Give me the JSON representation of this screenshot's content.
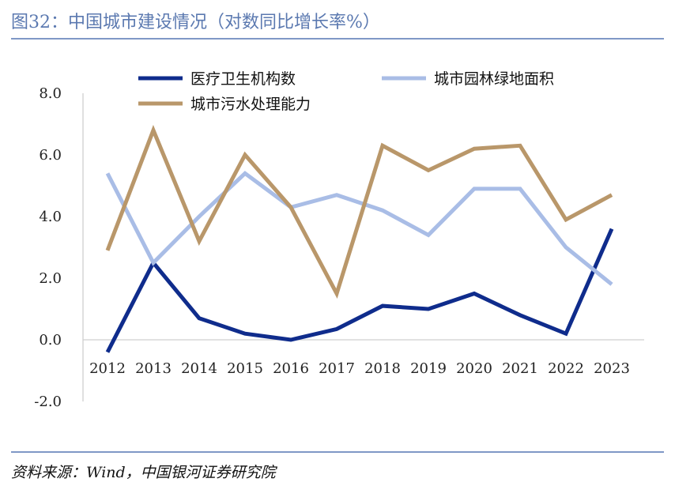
{
  "header": {
    "title": "图32：中国城市建设情况（对数同比增长率%）"
  },
  "footer": {
    "source": "资料来源：Wind，中国银河证券研究院"
  },
  "colors": {
    "accent": "#5b79b0",
    "rule": "#7f98c6"
  },
  "chart_data": {
    "type": "line",
    "title": "",
    "xlabel": "",
    "ylabel": "",
    "x": [
      "2012",
      "2013",
      "2014",
      "2015",
      "2016",
      "2017",
      "2018",
      "2019",
      "2020",
      "2021",
      "2022",
      "2023"
    ],
    "ylim": [
      -2.0,
      8.0
    ],
    "yticks": [
      "-2.0",
      "0.0",
      "2.0",
      "4.0",
      "6.0",
      "8.0"
    ],
    "grid": false,
    "legend_position": "top",
    "series": [
      {
        "name": "医疗卫生机构数",
        "color": "#0f2c8c",
        "values": [
          -0.4,
          2.5,
          0.7,
          0.2,
          0.0,
          0.35,
          1.1,
          1.0,
          1.5,
          0.8,
          0.2,
          3.6
        ]
      },
      {
        "name": "城市园林绿地面积",
        "color": "#a9bde6",
        "values": [
          5.4,
          2.5,
          4.0,
          5.4,
          4.3,
          4.7,
          4.2,
          3.4,
          4.9,
          4.9,
          3.0,
          1.8
        ]
      },
      {
        "name": "城市污水处理能力",
        "color": "#b9976a",
        "values": [
          2.9,
          6.8,
          3.2,
          6.0,
          4.3,
          1.5,
          6.3,
          5.5,
          6.2,
          6.3,
          3.9,
          4.7
        ]
      }
    ]
  }
}
